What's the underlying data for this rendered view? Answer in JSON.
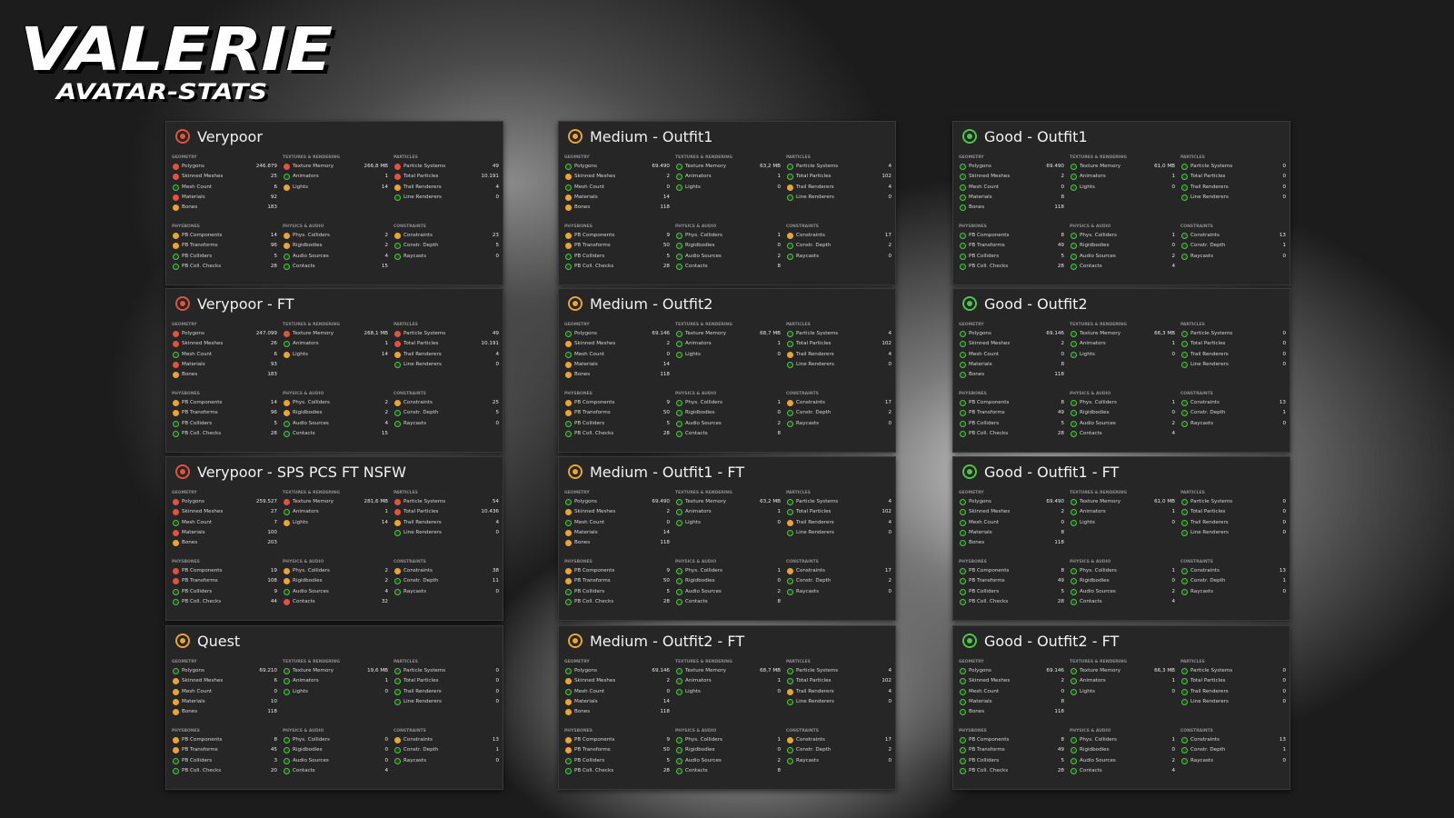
{
  "header": {
    "title": "VALERIE",
    "subtitle": "AVATAR-STATS"
  },
  "sections": [
    {
      "title": "GEOMETRY",
      "labels": [
        "Polygons",
        "Skinned Meshes",
        "Mesh Count",
        "Materials",
        "Bones"
      ]
    },
    {
      "title": "TEXTURES & RENDERING",
      "labels": [
        "Texture Memory",
        "Animators",
        "Lights"
      ]
    },
    {
      "title": "PARTICLES",
      "labels": [
        "Particle Systems",
        "Total Particles",
        "Trail Renderers",
        "Line Renderers"
      ]
    },
    {
      "title": "PHYSBONES",
      "labels": [
        "PB Components",
        "PB Transforms",
        "PB Colliders",
        "PB Coll. Checks"
      ]
    },
    {
      "title": "PHYSICS & AUDIO",
      "labels": [
        "Phys. Colliders",
        "Rigidbodies",
        "Audio Sources",
        "Contacts"
      ]
    },
    {
      "title": "CONSTRAINTS",
      "labels": [
        "Constraints",
        "Constr. Depth",
        "Raycasts"
      ]
    }
  ],
  "panels": [
    {
      "title": "Verypoor",
      "rating": "red",
      "values": [
        [
          "246.879",
          "25",
          "6",
          "92",
          "183"
        ],
        [
          "266,8 MB",
          "1",
          "14"
        ],
        [
          "49",
          "10.191",
          "4",
          "0"
        ],
        [
          "14",
          "96",
          "5",
          "28"
        ],
        [
          "2",
          "2",
          "4",
          "15"
        ],
        [
          "23",
          "5",
          "0"
        ]
      ],
      "icons": [
        [
          "red",
          "red",
          "green",
          "red",
          "orange"
        ],
        [
          "red",
          "green",
          "orange"
        ],
        [
          "red",
          "red",
          "orange",
          "green"
        ],
        [
          "orange",
          "orange",
          "green",
          "green"
        ],
        [
          "orange",
          "orange",
          "green",
          "green"
        ],
        [
          "orange",
          "green",
          "green"
        ]
      ]
    },
    {
      "title": "Verypoor - FT",
      "rating": "red",
      "values": [
        [
          "247.099",
          "26",
          "6",
          "93",
          "183"
        ],
        [
          "268,1 MB",
          "1",
          "14"
        ],
        [
          "49",
          "10.191",
          "4",
          "0"
        ],
        [
          "14",
          "96",
          "5",
          "28"
        ],
        [
          "2",
          "2",
          "4",
          "15"
        ],
        [
          "25",
          "5",
          "0"
        ]
      ],
      "icons": [
        [
          "red",
          "red",
          "green",
          "red",
          "orange"
        ],
        [
          "red",
          "green",
          "orange"
        ],
        [
          "red",
          "red",
          "orange",
          "green"
        ],
        [
          "orange",
          "orange",
          "green",
          "green"
        ],
        [
          "orange",
          "orange",
          "green",
          "green"
        ],
        [
          "orange",
          "green",
          "green"
        ]
      ]
    },
    {
      "title": "Verypoor - SPS PCS FT NSFW",
      "rating": "red",
      "values": [
        [
          "259.527",
          "27",
          "7",
          "100",
          "203"
        ],
        [
          "281,6 MB",
          "1",
          "14"
        ],
        [
          "54",
          "10.436",
          "4",
          "0"
        ],
        [
          "19",
          "108",
          "9",
          "44"
        ],
        [
          "2",
          "2",
          "4",
          "32"
        ],
        [
          "38",
          "11",
          "0"
        ]
      ],
      "icons": [
        [
          "red",
          "red",
          "green",
          "red",
          "orange"
        ],
        [
          "red",
          "green",
          "orange"
        ],
        [
          "red",
          "red",
          "orange",
          "green"
        ],
        [
          "red",
          "red",
          "green",
          "green"
        ],
        [
          "orange",
          "orange",
          "green",
          "red"
        ],
        [
          "orange",
          "green",
          "green"
        ]
      ]
    },
    {
      "title": "Quest",
      "rating": "orange",
      "values": [
        [
          "69.210",
          "6",
          "0",
          "10",
          "118"
        ],
        [
          "19,6 MB",
          "1",
          "0"
        ],
        [
          "0",
          "0",
          "0",
          "0"
        ],
        [
          "8",
          "45",
          "3",
          "20"
        ],
        [
          "0",
          "0",
          "0",
          "4"
        ],
        [
          "13",
          "1",
          "0"
        ]
      ],
      "icons": [
        [
          "green",
          "orange",
          "orange",
          "orange",
          "orange"
        ],
        [
          "green",
          "green",
          "green"
        ],
        [
          "green",
          "green",
          "green",
          "green"
        ],
        [
          "orange",
          "orange",
          "green",
          "green"
        ],
        [
          "green",
          "green",
          "green",
          "green"
        ],
        [
          "orange",
          "green",
          "green"
        ]
      ]
    },
    {
      "title": "Medium - Outfit1",
      "rating": "orange",
      "values": [
        [
          "69.490",
          "2",
          "0",
          "14",
          "118"
        ],
        [
          "63,2 MB",
          "1",
          "0"
        ],
        [
          "4",
          "102",
          "4",
          "0"
        ],
        [
          "9",
          "50",
          "5",
          "28"
        ],
        [
          "1",
          "0",
          "2",
          "8"
        ],
        [
          "17",
          "2",
          "0"
        ]
      ],
      "icons": [
        [
          "green",
          "orange",
          "green",
          "orange",
          "orange"
        ],
        [
          "green",
          "green",
          "green"
        ],
        [
          "green",
          "green",
          "orange",
          "green"
        ],
        [
          "orange",
          "orange",
          "green",
          "green"
        ],
        [
          "green",
          "green",
          "green",
          "green"
        ],
        [
          "orange",
          "green",
          "green"
        ]
      ]
    },
    {
      "title": "Medium - Outfit2",
      "rating": "orange",
      "values": [
        [
          "69.146",
          "2",
          "0",
          "14",
          "118"
        ],
        [
          "68,7 MB",
          "1",
          "0"
        ],
        [
          "4",
          "102",
          "4",
          "0"
        ],
        [
          "9",
          "50",
          "5",
          "28"
        ],
        [
          "1",
          "0",
          "2",
          "8"
        ],
        [
          "17",
          "2",
          "0"
        ]
      ],
      "icons": [
        [
          "green",
          "orange",
          "green",
          "orange",
          "orange"
        ],
        [
          "green",
          "green",
          "green"
        ],
        [
          "green",
          "green",
          "orange",
          "green"
        ],
        [
          "orange",
          "orange",
          "green",
          "green"
        ],
        [
          "green",
          "green",
          "green",
          "green"
        ],
        [
          "orange",
          "green",
          "green"
        ]
      ]
    },
    {
      "title": "Medium - Outfit1 - FT",
      "rating": "orange",
      "values": [
        [
          "69.490",
          "2",
          "0",
          "14",
          "118"
        ],
        [
          "63,2 MB",
          "1",
          "0"
        ],
        [
          "4",
          "102",
          "4",
          "0"
        ],
        [
          "9",
          "50",
          "5",
          "28"
        ],
        [
          "1",
          "0",
          "2",
          "8"
        ],
        [
          "17",
          "2",
          "0"
        ]
      ],
      "icons": [
        [
          "green",
          "orange",
          "green",
          "orange",
          "orange"
        ],
        [
          "green",
          "green",
          "green"
        ],
        [
          "green",
          "green",
          "orange",
          "green"
        ],
        [
          "orange",
          "orange",
          "green",
          "green"
        ],
        [
          "green",
          "green",
          "green",
          "green"
        ],
        [
          "orange",
          "green",
          "green"
        ]
      ]
    },
    {
      "title": "Medium - Outfit2 - FT",
      "rating": "orange",
      "values": [
        [
          "69.146",
          "2",
          "0",
          "14",
          "118"
        ],
        [
          "68,7 MB",
          "1",
          "0"
        ],
        [
          "4",
          "102",
          "4",
          "0"
        ],
        [
          "9",
          "50",
          "5",
          "28"
        ],
        [
          "1",
          "0",
          "2",
          "8"
        ],
        [
          "17",
          "2",
          "0"
        ]
      ],
      "icons": [
        [
          "green",
          "orange",
          "green",
          "orange",
          "orange"
        ],
        [
          "green",
          "green",
          "green"
        ],
        [
          "green",
          "green",
          "orange",
          "green"
        ],
        [
          "orange",
          "orange",
          "green",
          "green"
        ],
        [
          "green",
          "green",
          "green",
          "green"
        ],
        [
          "orange",
          "green",
          "green"
        ]
      ]
    },
    {
      "title": "Good - Outfit1",
      "rating": "green",
      "values": [
        [
          "69.490",
          "2",
          "0",
          "8",
          "118"
        ],
        [
          "61,0 MB",
          "1",
          "0"
        ],
        [
          "0",
          "0",
          "0",
          "0"
        ],
        [
          "8",
          "49",
          "5",
          "28"
        ],
        [
          "1",
          "0",
          "2",
          "4"
        ],
        [
          "13",
          "1",
          "0"
        ]
      ],
      "icons": [
        [
          "green",
          "green",
          "green",
          "green",
          "green"
        ],
        [
          "green",
          "green",
          "green"
        ],
        [
          "green",
          "green",
          "green",
          "green"
        ],
        [
          "green",
          "green",
          "green",
          "green"
        ],
        [
          "green",
          "green",
          "green",
          "green"
        ],
        [
          "green",
          "green",
          "green"
        ]
      ]
    },
    {
      "title": "Good - Outfit2",
      "rating": "green",
      "values": [
        [
          "69.146",
          "2",
          "0",
          "8",
          "118"
        ],
        [
          "66,3 MB",
          "1",
          "0"
        ],
        [
          "0",
          "0",
          "0",
          "0"
        ],
        [
          "8",
          "49",
          "5",
          "28"
        ],
        [
          "1",
          "0",
          "2",
          "4"
        ],
        [
          "13",
          "1",
          "0"
        ]
      ],
      "icons": [
        [
          "green",
          "green",
          "green",
          "green",
          "green"
        ],
        [
          "green",
          "green",
          "green"
        ],
        [
          "green",
          "green",
          "green",
          "green"
        ],
        [
          "green",
          "green",
          "green",
          "green"
        ],
        [
          "green",
          "green",
          "green",
          "green"
        ],
        [
          "green",
          "green",
          "green"
        ]
      ]
    },
    {
      "title": "Good - Outfit1 - FT",
      "rating": "green",
      "values": [
        [
          "69.490",
          "2",
          "0",
          "8",
          "118"
        ],
        [
          "61,0 MB",
          "1",
          "0"
        ],
        [
          "0",
          "0",
          "0",
          "0"
        ],
        [
          "8",
          "49",
          "5",
          "28"
        ],
        [
          "1",
          "0",
          "2",
          "4"
        ],
        [
          "13",
          "1",
          "0"
        ]
      ],
      "icons": [
        [
          "green",
          "green",
          "green",
          "green",
          "green"
        ],
        [
          "green",
          "green",
          "green"
        ],
        [
          "green",
          "green",
          "green",
          "green"
        ],
        [
          "green",
          "green",
          "green",
          "green"
        ],
        [
          "green",
          "green",
          "green",
          "green"
        ],
        [
          "green",
          "green",
          "green"
        ]
      ]
    },
    {
      "title": "Good - Outfit2 - FT",
      "rating": "green",
      "values": [
        [
          "69.146",
          "2",
          "0",
          "8",
          "118"
        ],
        [
          "66,3 MB",
          "1",
          "0"
        ],
        [
          "0",
          "0",
          "0",
          "0"
        ],
        [
          "8",
          "49",
          "5",
          "28"
        ],
        [
          "1",
          "0",
          "2",
          "4"
        ],
        [
          "13",
          "1",
          "0"
        ]
      ],
      "icons": [
        [
          "green",
          "green",
          "green",
          "green",
          "green"
        ],
        [
          "green",
          "green",
          "green"
        ],
        [
          "green",
          "green",
          "green",
          "green"
        ],
        [
          "green",
          "green",
          "green",
          "green"
        ],
        [
          "green",
          "green",
          "green",
          "green"
        ],
        [
          "green",
          "green",
          "green"
        ]
      ]
    }
  ]
}
